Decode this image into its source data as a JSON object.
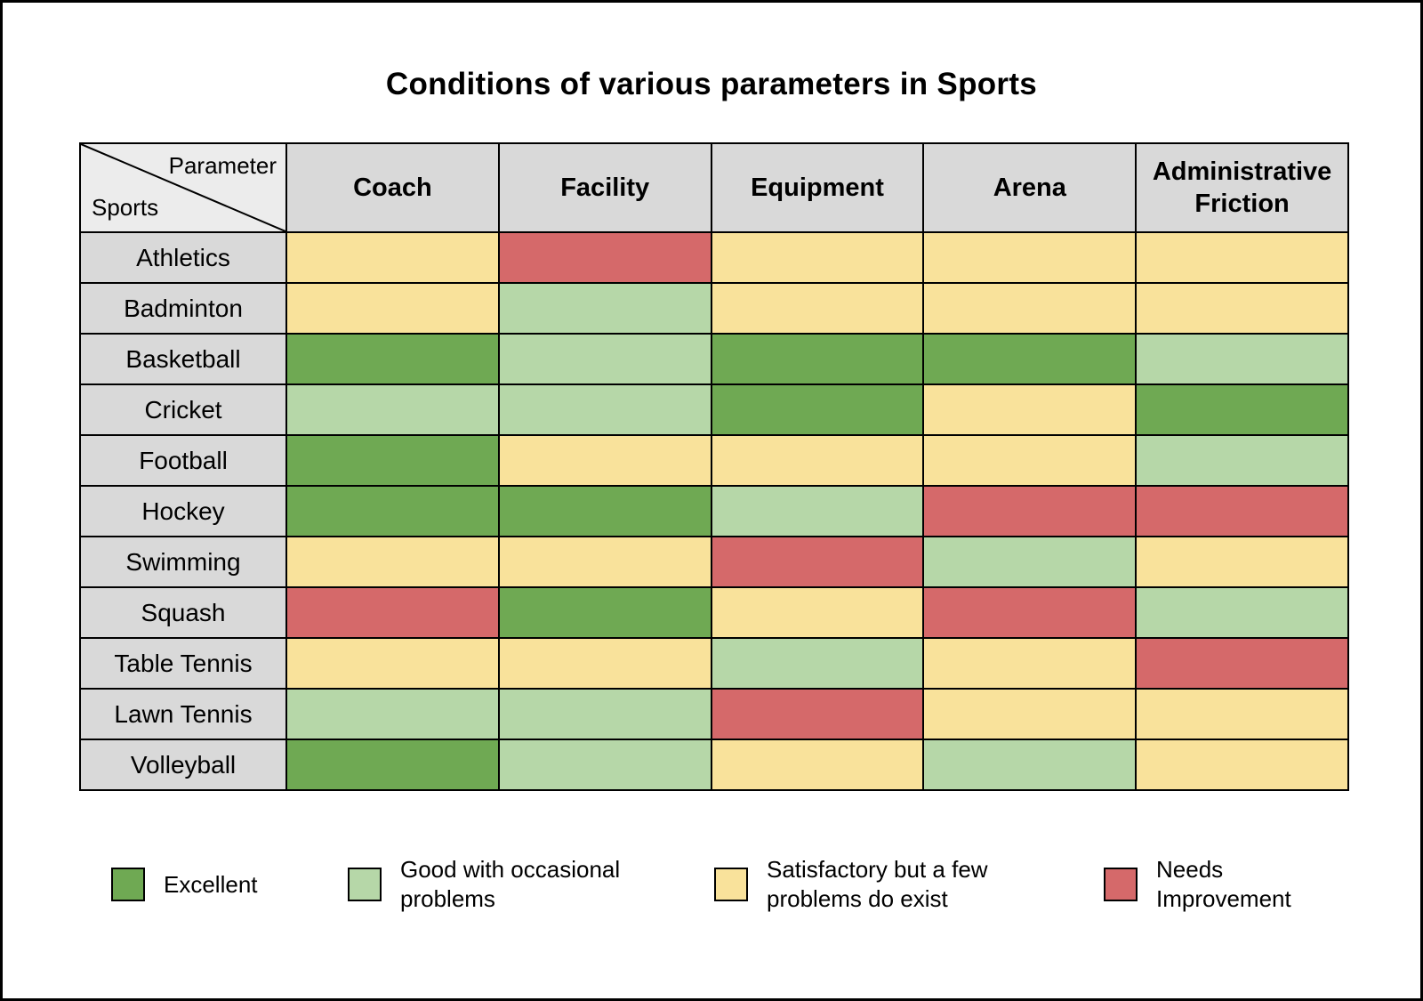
{
  "title": "Conditions of various parameters in Sports",
  "corner": {
    "top_label": "Parameter",
    "bottom_label": "Sports"
  },
  "chart_data": {
    "type": "heatmap",
    "title": "Conditions of various parameters in Sports",
    "columns": [
      "Coach",
      "Facility",
      "Equipment",
      "Arena",
      "Administrative Friction"
    ],
    "rows": [
      "Athletics",
      "Badminton",
      "Basketball",
      "Cricket",
      "Football",
      "Hockey",
      "Swimming",
      "Squash",
      "Table Tennis",
      "Lawn Tennis",
      "Volleyball"
    ],
    "values": [
      [
        "satisfactory",
        "needs_improvement",
        "satisfactory",
        "satisfactory",
        "satisfactory"
      ],
      [
        "satisfactory",
        "good",
        "satisfactory",
        "satisfactory",
        "satisfactory"
      ],
      [
        "excellent",
        "good",
        "excellent",
        "excellent",
        "good"
      ],
      [
        "good",
        "good",
        "excellent",
        "satisfactory",
        "excellent"
      ],
      [
        "excellent",
        "satisfactory",
        "satisfactory",
        "satisfactory",
        "good"
      ],
      [
        "excellent",
        "excellent",
        "good",
        "needs_improvement",
        "needs_improvement"
      ],
      [
        "satisfactory",
        "satisfactory",
        "needs_improvement",
        "good",
        "satisfactory"
      ],
      [
        "needs_improvement",
        "excellent",
        "satisfactory",
        "needs_improvement",
        "good"
      ],
      [
        "satisfactory",
        "satisfactory",
        "good",
        "satisfactory",
        "needs_improvement"
      ],
      [
        "good",
        "good",
        "needs_improvement",
        "satisfactory",
        "satisfactory"
      ],
      [
        "excellent",
        "good",
        "satisfactory",
        "good",
        "satisfactory"
      ]
    ],
    "levels": {
      "excellent": {
        "label": "Excellent",
        "color": "#6fa953"
      },
      "good": {
        "label": "Good with occasional problems",
        "color": "#b6d7a8"
      },
      "satisfactory": {
        "label": "Satisfactory but a few problems do exist",
        "color": "#f9e29b"
      },
      "needs_improvement": {
        "label": "Needs Improvement",
        "color": "#d5696a"
      }
    },
    "legend_order": [
      "excellent",
      "good",
      "satisfactory",
      "needs_improvement"
    ],
    "legend_position": "bottom",
    "header_bg": "#d9d9d9",
    "corner_bg": "#ececec",
    "border_color": "#000000"
  }
}
